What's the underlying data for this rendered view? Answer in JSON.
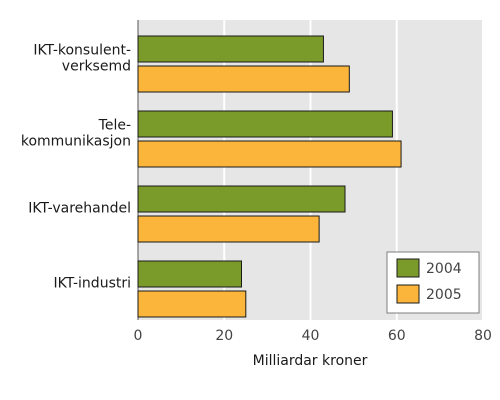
{
  "chart_data": {
    "type": "bar",
    "orientation": "horizontal",
    "categories": [
      [
        "IKT-konsulent-",
        "verksemd"
      ],
      [
        "Tele-",
        "kommunikasjon"
      ],
      [
        "IKT-varehandel"
      ],
      [
        "IKT-industri"
      ]
    ],
    "series": [
      {
        "name": "2004",
        "color": "#7a9a2a",
        "values": [
          43,
          59,
          48,
          24
        ]
      },
      {
        "name": "2005",
        "color": "#fbb53b",
        "values": [
          49,
          61,
          42,
          25
        ]
      }
    ],
    "xlabel": "Milliardar kroner",
    "xlim": [
      0,
      80
    ],
    "xticks": [
      0,
      20,
      40,
      60,
      80
    ],
    "grid": true,
    "plot_background": "#e6e6e6",
    "legend_position": "bottom-right"
  }
}
